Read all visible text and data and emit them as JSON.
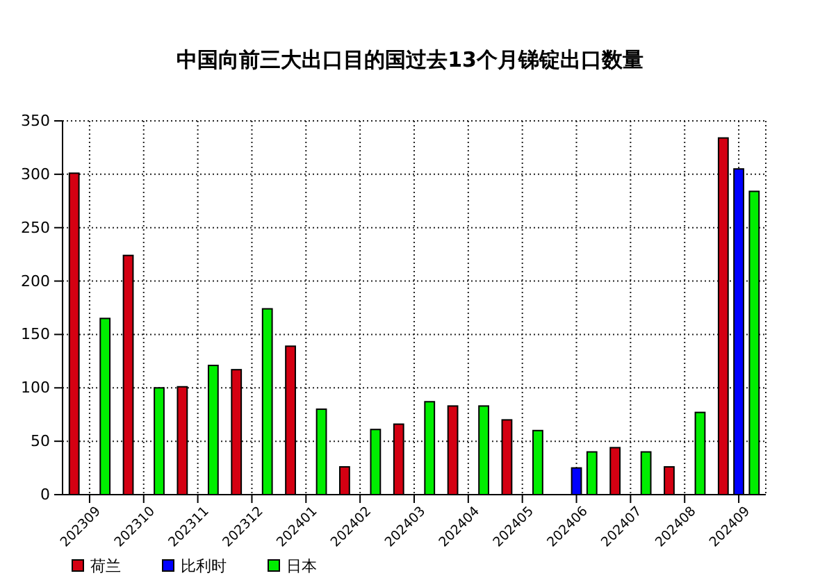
{
  "chart_data": {
    "type": "bar",
    "title": "中国向前三大出口目的国过去13个月锑锭出口数量",
    "categories": [
      "202309",
      "202310",
      "202311",
      "202312",
      "202401",
      "202402",
      "202403",
      "202404",
      "202405",
      "202406",
      "202407",
      "202408",
      "202409"
    ],
    "series": [
      {
        "name": "荷兰",
        "color": "#d40012",
        "values": [
          301,
          224,
          101,
          117,
          139,
          26,
          66,
          83,
          70,
          null,
          44,
          26,
          334
        ]
      },
      {
        "name": "比利时",
        "color": "#0000ff",
        "values": [
          null,
          null,
          null,
          null,
          null,
          null,
          null,
          null,
          null,
          25,
          null,
          null,
          305
        ]
      },
      {
        "name": "日本",
        "color": "#00ee00",
        "values": [
          165,
          100,
          121,
          174,
          80,
          61,
          87,
          83,
          60,
          40,
          40,
          77,
          284
        ]
      }
    ],
    "ylim": [
      0,
      350
    ],
    "yticks": [
      0,
      50,
      100,
      150,
      200,
      250,
      300,
      350
    ],
    "grid": true,
    "legend": "bottom left"
  }
}
